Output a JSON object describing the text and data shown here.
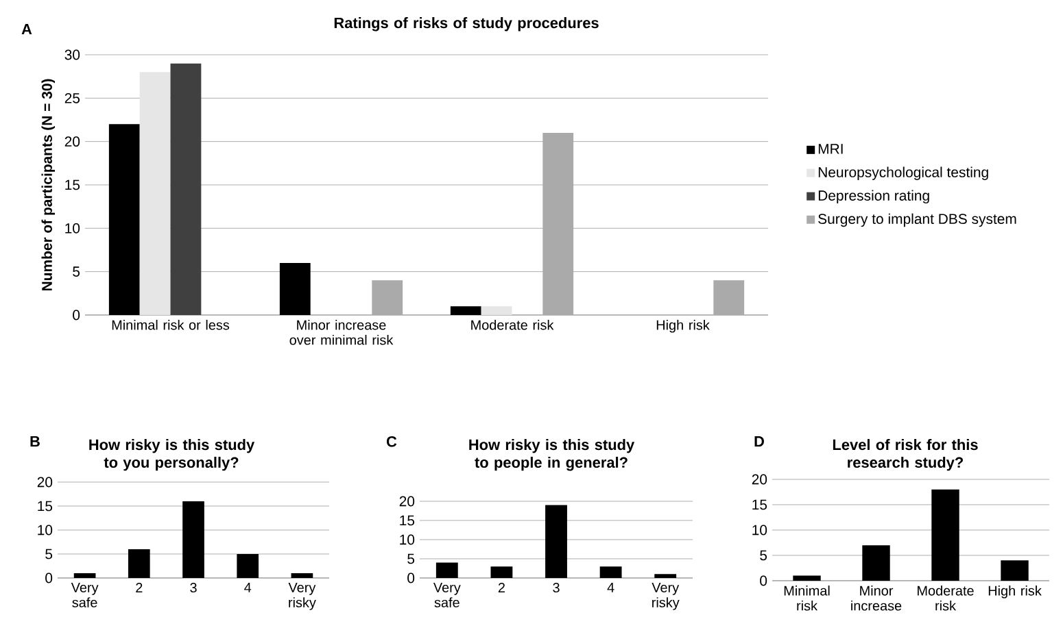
{
  "chart_data": [
    {
      "type": "bar",
      "title": "Ratings of risks of study procedures",
      "ylabel": "Number of participants (N = 30)",
      "annotations": [
        "A"
      ],
      "categories": [
        "Minimal risk or less",
        "Minor increase over minimal risk",
        "Moderate risk",
        "High risk"
      ],
      "ylim": [
        0,
        30
      ],
      "yticks": [
        0,
        5,
        10,
        15,
        20,
        25,
        30
      ],
      "grid": "y",
      "legend": "right",
      "series": [
        {
          "name": "MRI",
          "color": "#000000",
          "values": [
            22,
            6,
            1,
            0
          ]
        },
        {
          "name": "Neuropsychological testing",
          "color": "#e6e6e6",
          "values": [
            28,
            0,
            1,
            0
          ]
        },
        {
          "name": "Depression rating",
          "color": "#404040",
          "values": [
            29,
            0,
            0,
            0
          ]
        },
        {
          "name": "Surgery to implant DBS system",
          "color": "#aaaaaa",
          "values": [
            0,
            4,
            21,
            4
          ]
        }
      ]
    },
    {
      "type": "bar",
      "title": "How risky is this study to you personally?",
      "annotations": [
        "B"
      ],
      "categories": [
        "Very safe",
        "2",
        "3",
        "4",
        "Very risky"
      ],
      "ylim": [
        0,
        20
      ],
      "yticks": [
        0,
        5,
        10,
        15,
        20
      ],
      "grid": "y",
      "color": "#000000",
      "values": [
        1,
        6,
        16,
        5,
        1
      ]
    },
    {
      "type": "bar",
      "title": "How risky is this study to people in general?",
      "annotations": [
        "C"
      ],
      "categories": [
        "Very safe",
        "2",
        "3",
        "4",
        "Very risky"
      ],
      "ylim": [
        0,
        20
      ],
      "yticks": [
        0,
        5,
        10,
        15,
        20
      ],
      "grid": "y",
      "color": "#000000",
      "values": [
        4,
        3,
        19,
        3,
        1
      ]
    },
    {
      "type": "bar",
      "title": "Level of risk for this research study?",
      "annotations": [
        "D"
      ],
      "categories": [
        "Minimal risk",
        "Minor increase",
        "Moderate risk",
        "High risk"
      ],
      "ylim": [
        0,
        20
      ],
      "yticks": [
        0,
        5,
        10,
        15,
        20
      ],
      "grid": "y",
      "color": "#000000",
      "values": [
        1,
        7,
        18,
        4
      ]
    }
  ]
}
